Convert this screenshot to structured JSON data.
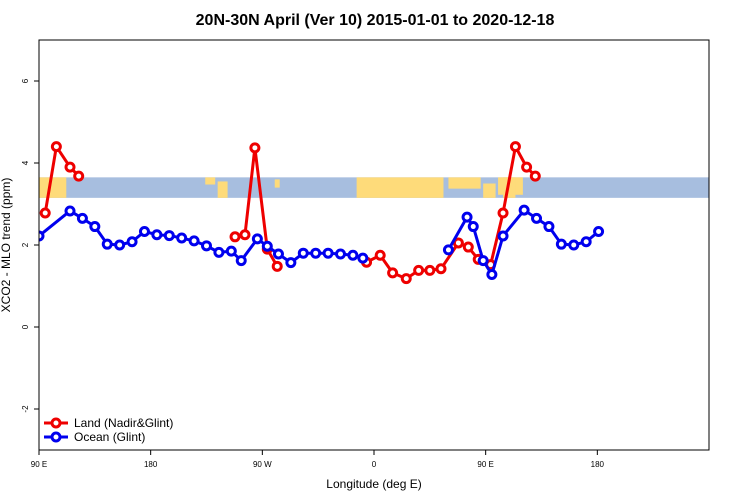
{
  "chart_data": {
    "type": "line",
    "title": "20N-30N April (Ver 10)   2015-01-01 to 2020-12-18",
    "xlabel": "Longitude (deg E)",
    "ylabel": "XCO2 - MLO trend (ppm)",
    "xlim": [
      -360,
      180
    ],
    "ylim": [
      -3,
      7
    ],
    "x_ticks": [
      {
        "value": -360,
        "label": "90 E"
      },
      {
        "value": -270,
        "label": "180"
      },
      {
        "value": -180,
        "label": "90 W"
      },
      {
        "value": -90,
        "label": "0"
      },
      {
        "value": 0,
        "label": "90 E"
      },
      {
        "value": 90,
        "label": "180"
      }
    ],
    "y_ticks": [
      {
        "value": -2,
        "label": "-2"
      },
      {
        "value": 0,
        "label": "0"
      },
      {
        "value": 2,
        "label": "2"
      },
      {
        "value": 4,
        "label": "4"
      },
      {
        "value": 6,
        "label": "6"
      }
    ],
    "legend_position": "bottom-left",
    "map_band": {
      "ymin": 3.15,
      "ymax": 3.65,
      "ocean_color": "#a7bedf",
      "land_color": "#fedb7a"
    },
    "series": [
      {
        "name": "Land (Nadir&Glint)",
        "color": "#ee0000",
        "segments": [
          [
            [
              -355,
              2.78
            ],
            [
              -346,
              4.4
            ],
            [
              -335,
              3.9
            ],
            [
              -328,
              3.68
            ]
          ],
          [
            [
              -202,
              2.2
            ],
            [
              -194,
              2.25
            ],
            [
              -186,
              4.37
            ],
            [
              -176,
              1.9
            ],
            [
              -168,
              1.48
            ]
          ],
          [
            [
              -96,
              1.58
            ],
            [
              -95,
              1.58
            ],
            [
              -95,
              1.58
            ],
            [
              -95,
              1.58
            ],
            [
              -95,
              1.58
            ]
          ],
          [
            [
              -95,
              1.58
            ],
            [
              -95,
              1.58
            ]
          ],
          [
            [
              -95,
              1.58
            ],
            [
              -95,
              1.58
            ]
          ]
        ],
        "points": [
          [
            -355,
            2.78
          ],
          [
            -346,
            4.4
          ],
          [
            -335,
            3.9
          ],
          [
            -328,
            3.68
          ],
          [
            -202,
            2.2
          ],
          [
            -194,
            2.25
          ],
          [
            -186,
            4.37
          ],
          [
            -176,
            1.9
          ],
          [
            -168,
            1.48
          ],
          [
            -96,
            1.58
          ],
          [
            -85,
            1.75
          ],
          [
            -75,
            1.32
          ],
          [
            -64,
            1.18
          ],
          [
            -54,
            1.38
          ],
          [
            -45,
            1.38
          ],
          [
            -36,
            1.42
          ],
          [
            -22,
            2.05
          ],
          [
            -14,
            1.95
          ],
          [
            -6,
            1.65
          ],
          [
            4,
            1.52
          ],
          [
            14,
            2.78
          ],
          [
            24,
            4.4
          ],
          [
            33,
            3.9
          ],
          [
            40,
            3.68
          ]
        ]
      },
      {
        "name": "Ocean (Glint)",
        "color": "#0000ee",
        "points": [
          [
            -360,
            2.22
          ],
          [
            -335,
            2.83
          ],
          [
            -325,
            2.65
          ],
          [
            -315,
            2.45
          ],
          [
            -305,
            2.02
          ],
          [
            -295,
            2.0
          ],
          [
            -285,
            2.08
          ],
          [
            -275,
            2.33
          ],
          [
            -265,
            2.25
          ],
          [
            -255,
            2.23
          ],
          [
            -245,
            2.17
          ],
          [
            -235,
            2.1
          ],
          [
            -225,
            1.98
          ],
          [
            -215,
            1.82
          ],
          [
            -205,
            1.85
          ],
          [
            -197,
            1.62
          ],
          [
            -184,
            2.15
          ],
          [
            -176,
            1.97
          ],
          [
            -167,
            1.78
          ],
          [
            -157,
            1.57
          ],
          [
            -147,
            1.8
          ],
          [
            -137,
            1.8
          ],
          [
            -127,
            1.8
          ],
          [
            -117,
            1.78
          ],
          [
            -107,
            1.75
          ],
          [
            -99,
            1.68
          ],
          [
            -30,
            1.88
          ],
          [
            -15,
            2.68
          ],
          [
            -10,
            2.45
          ],
          [
            -2,
            1.62
          ],
          [
            5,
            1.28
          ],
          [
            14,
            2.22
          ],
          [
            31,
            2.85
          ],
          [
            41,
            2.65
          ],
          [
            51,
            2.45
          ],
          [
            61,
            2.02
          ],
          [
            71,
            2.0
          ],
          [
            81,
            2.08
          ],
          [
            91,
            2.33
          ]
        ]
      }
    ],
    "series_breaks": {
      "Land (Nadir&Glint)": [
        4,
        9
      ],
      "Ocean (Glint)": [
        26
      ]
    }
  }
}
